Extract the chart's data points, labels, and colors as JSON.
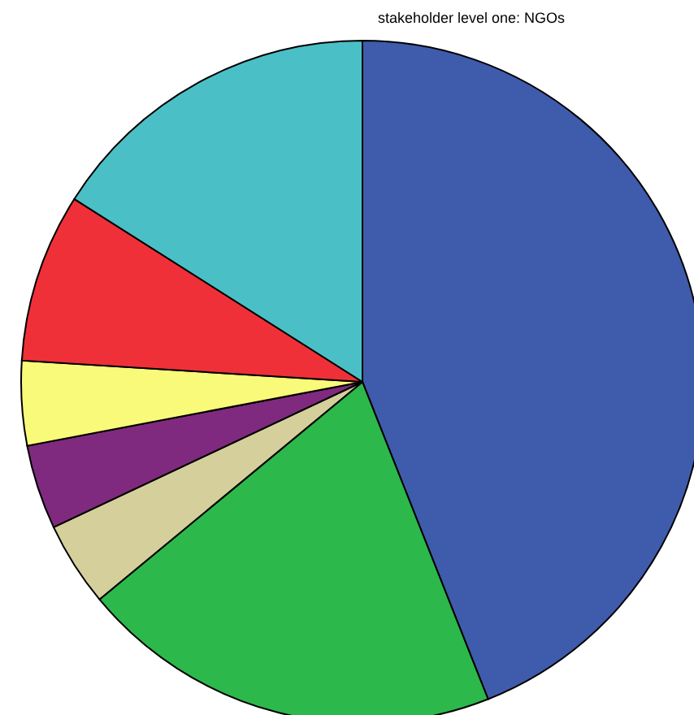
{
  "chart_data": {
    "type": "pie",
    "title": "stakeholder level one: NGOs",
    "categories": [
      null,
      null,
      null,
      null,
      null,
      null,
      null
    ],
    "values": [
      44,
      20,
      4,
      4,
      4,
      8,
      16
    ],
    "colors": [
      "#3f5bab",
      "#2db84b",
      "#d5cf9c",
      "#7f2a7f",
      "#fafa7a",
      "#f03038",
      "#4bbfc6"
    ]
  }
}
